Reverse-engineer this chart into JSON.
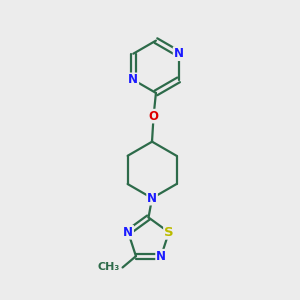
{
  "bg_color": "#ececec",
  "bond_color": "#2d6b4a",
  "bond_lw": 1.6,
  "atom_colors": {
    "N": "#1a1aff",
    "O": "#dd0000",
    "S": "#bbbb00",
    "C": "#2d6b4a"
  },
  "font_size": 8.5,
  "figsize": [
    3.0,
    3.0
  ],
  "dpi": 100
}
